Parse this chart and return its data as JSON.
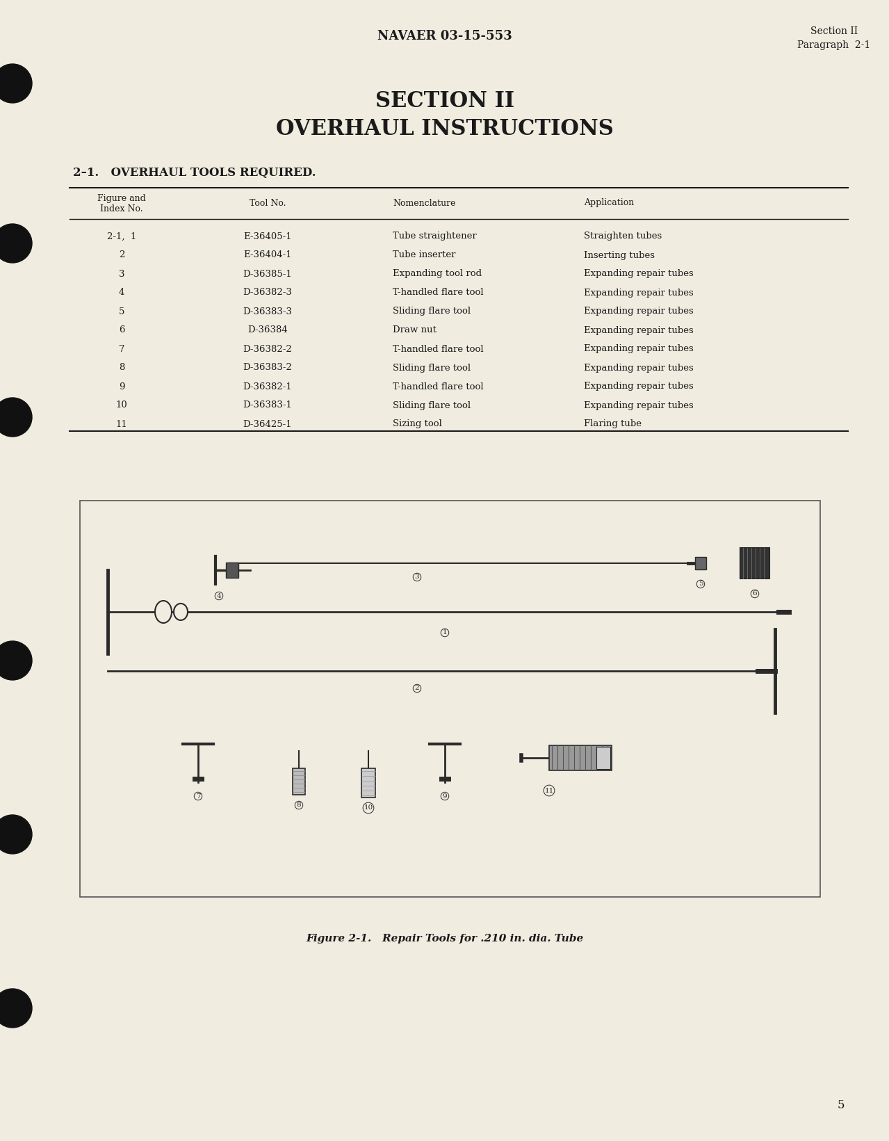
{
  "page_color": "#f0ece0",
  "text_color": "#1a1a1a",
  "draw_color": "#2a2a2a",
  "header_center": "NAVAER 03-15-553",
  "header_right_line1": "Section II",
  "header_right_line2": "Paragraph  2-1",
  "section_title_line1": "SECTION II",
  "section_title_line2": "OVERHAUL INSTRUCTIONS",
  "section_heading": "2–1.   OVERHAUL TOOLS REQUIRED.",
  "table_rows": [
    [
      "2-1,  1",
      "E-36405-1",
      "Tube straightener",
      "Straighten tubes"
    ],
    [
      "2",
      "E-36404-1",
      "Tube inserter",
      "Inserting tubes"
    ],
    [
      "3",
      "D-36385-1",
      "Expanding tool rod",
      "Expanding repair tubes"
    ],
    [
      "4",
      "D-36382-3",
      "T-handled flare tool",
      "Expanding repair tubes"
    ],
    [
      "5",
      "D-36383-3",
      "Sliding flare tool",
      "Expanding repair tubes"
    ],
    [
      "6",
      "D-36384",
      "Draw nut",
      "Expanding repair tubes"
    ],
    [
      "7",
      "D-36382-2",
      "T-handled flare tool",
      "Expanding repair tubes"
    ],
    [
      "8",
      "D-36383-2",
      "Sliding flare tool",
      "Expanding repair tubes"
    ],
    [
      "9",
      "D-36382-1",
      "T-handled flare tool",
      "Expanding repair tubes"
    ],
    [
      "10",
      "D-36383-1",
      "Sliding flare tool",
      "Expanding repair tubes"
    ],
    [
      "11",
      "D-36425-1",
      "Sizing tool",
      "Flaring tube"
    ]
  ],
  "figure_caption": "Figure 2-1.   Repair Tools for .210 in. dia. Tube",
  "page_number": "5"
}
